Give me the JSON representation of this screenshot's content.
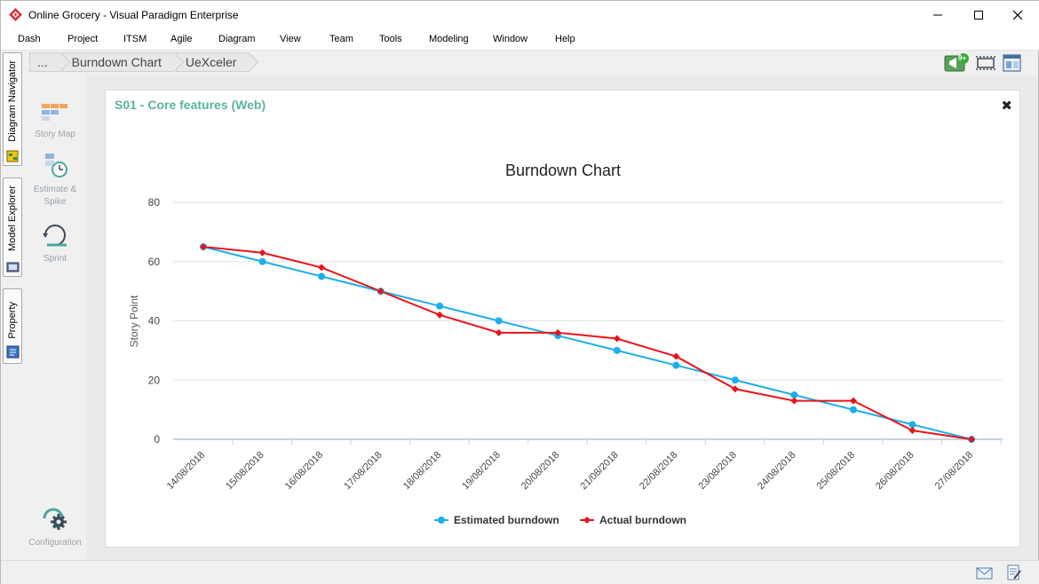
{
  "window": {
    "title": "Online Grocery - Visual Paradigm Enterprise",
    "icons": [
      "app-logo-icon",
      "minimize-icon",
      "maximize-icon",
      "close-icon"
    ]
  },
  "menu": [
    "Dash",
    "Project",
    "ITSM",
    "Agile",
    "Diagram",
    "View",
    "Team",
    "Tools",
    "Modeling",
    "Window",
    "Help"
  ],
  "side_tabs": [
    {
      "label": "Diagram Navigator",
      "icon": "diagram-navigator-icon"
    },
    {
      "label": "Model Explorer",
      "icon": "model-explorer-icon"
    },
    {
      "label": "Property",
      "icon": "property-icon"
    }
  ],
  "breadcrumb": [
    "...",
    "Burndown Chart",
    "UeXceler"
  ],
  "toolbar": {
    "notification_badge": "9+",
    "icons": [
      "announcement-icon",
      "fit-view-icon",
      "layout-icon"
    ]
  },
  "left_panel": {
    "items": [
      {
        "label": "Story Map",
        "icon": "story-map-icon"
      },
      {
        "label": "Estimate & Spike",
        "line1": "Estimate &",
        "line2": "Spike",
        "icon": "estimate-spike-icon"
      },
      {
        "label": "Sprint",
        "icon": "sprint-icon"
      }
    ],
    "configuration": {
      "label": "Configuration",
      "icon": "configuration-icon"
    }
  },
  "panel": {
    "title": "S01 - Core features (Web)",
    "close": "✖"
  },
  "chart_data": {
    "type": "line",
    "title": "Burndown Chart",
    "xlabel": "",
    "ylabel": "Story Point",
    "ylim": [
      0,
      80
    ],
    "yticks": [
      0,
      20,
      40,
      60,
      80
    ],
    "grid": true,
    "legend": "bottom-center",
    "categories": [
      "14/08/2018",
      "15/08/2018",
      "16/08/2018",
      "17/08/2018",
      "18/08/2018",
      "19/08/2018",
      "20/08/2018",
      "21/08/2018",
      "22/08/2018",
      "23/08/2018",
      "24/08/2018",
      "25/08/2018",
      "26/08/2018",
      "27/08/2018"
    ],
    "series": [
      {
        "name": "Estimated burndown",
        "color": "#1eaee8",
        "marker": "circle",
        "values": [
          65,
          60,
          55,
          50,
          45,
          40,
          35,
          30,
          25,
          20,
          15,
          10,
          5,
          0
        ]
      },
      {
        "name": "Actual burndown",
        "color": "#e8141b",
        "marker": "diamond",
        "values": [
          65,
          63,
          58,
          50,
          42,
          36,
          36,
          34,
          28,
          17,
          13,
          13,
          3,
          0
        ]
      }
    ]
  },
  "statusbar": {
    "icons": [
      "mail-icon",
      "document-edit-icon"
    ]
  }
}
